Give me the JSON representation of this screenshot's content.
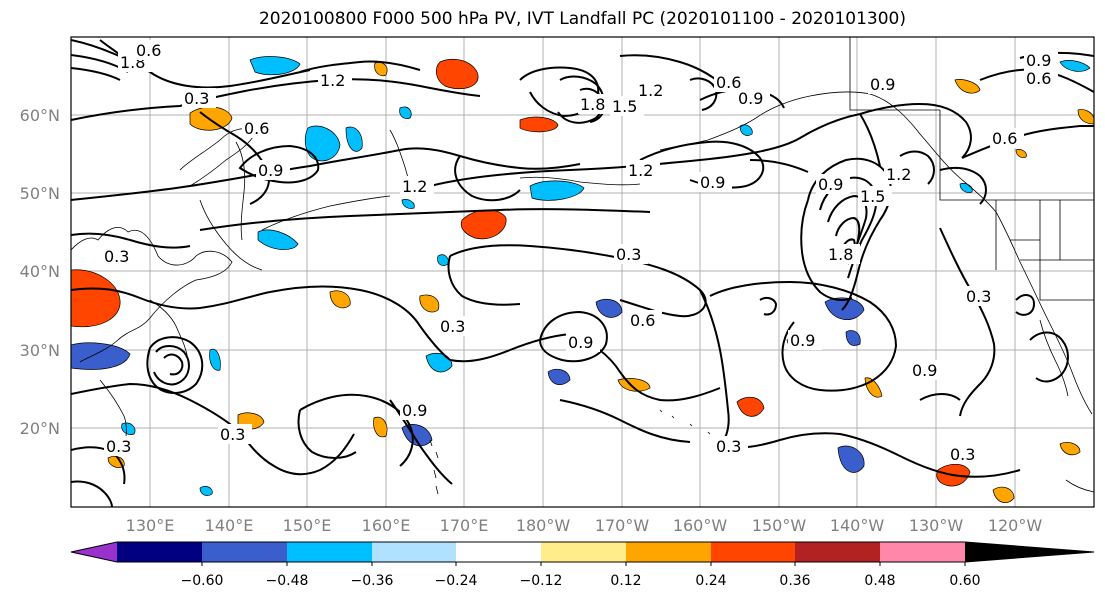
{
  "title": "2020100800 F000 500 hPa PV, IVT Landfall PC (2020101100 - 2020101300)",
  "lat_labels": [
    "60°N",
    "50°N",
    "40°N",
    "30°N",
    "20°N"
  ],
  "lon_labels": [
    "130°E",
    "140°E",
    "150°E",
    "160°E",
    "170°E",
    "180°W",
    "170°W",
    "160°W",
    "150°W",
    "140°W",
    "130°W",
    "120°W"
  ],
  "colorbar": {
    "ticks": [
      "−0.60",
      "−0.48",
      "−0.36",
      "−0.24",
      "−0.12",
      "0.12",
      "0.24",
      "0.36",
      "0.48",
      "0.60"
    ],
    "colors": [
      "#9932cc",
      "#000080",
      "#3a5fcd",
      "#00bfff",
      "#b0e2ff",
      "#ffffff",
      "#ffec8b",
      "#ffa500",
      "#ff4500",
      "#b22222",
      "#ff88aa"
    ]
  },
  "contour_labels": [
    "1.8",
    "1.2",
    "0.6",
    "0.3",
    "0.9",
    "1.2",
    "1.8",
    "1.5",
    "1.2",
    "0.6",
    "0.9",
    "0.6",
    "0.9",
    "0.9",
    "1.5",
    "1.2",
    "0.9",
    "0.6",
    "0.9",
    "1.2",
    "0.3",
    "0.3",
    "0.6",
    "0.3",
    "0.9",
    "0.3",
    "0.3",
    "0.9",
    "0.3",
    "0.3",
    "1.8",
    "0.3",
    "0.9",
    "0.9",
    "0.6"
  ]
}
